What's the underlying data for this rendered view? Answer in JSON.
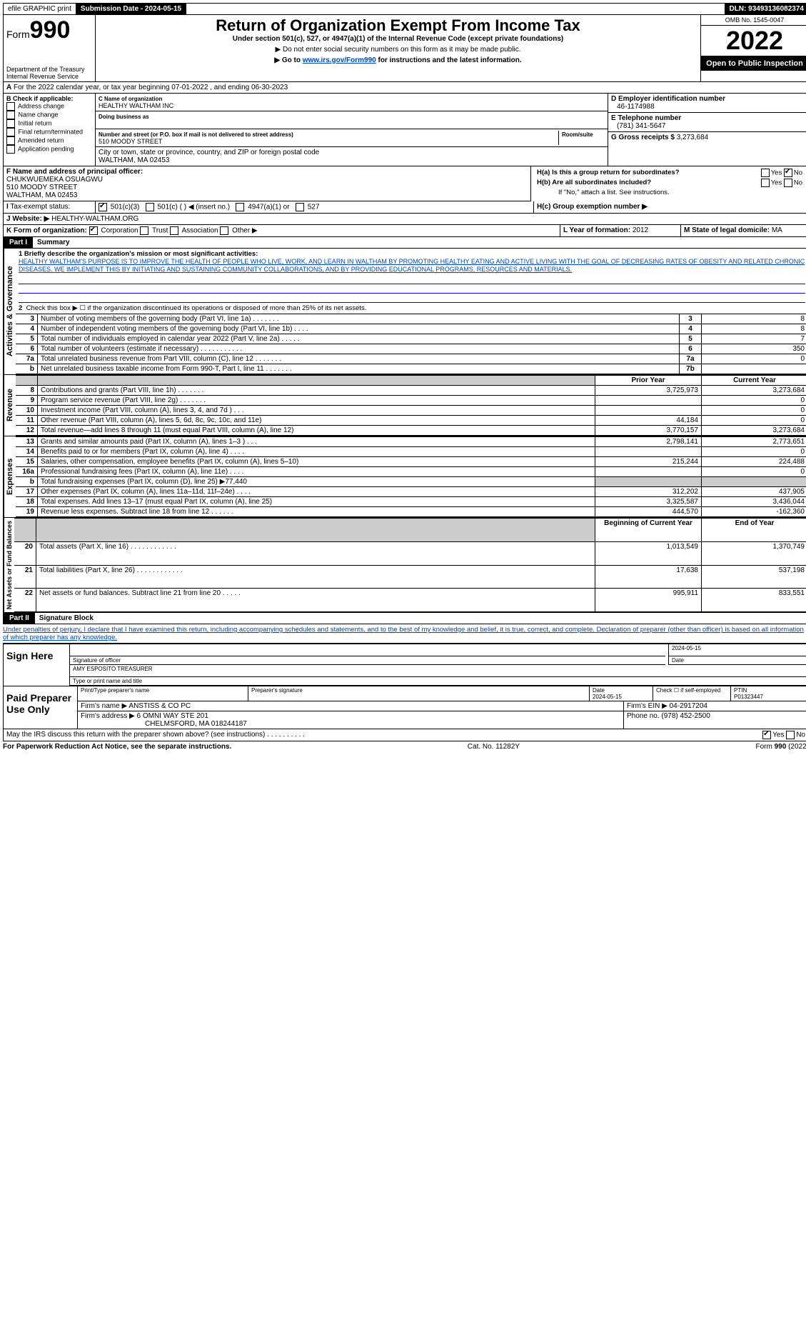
{
  "topbar": {
    "efile": "efile GRAPHIC print",
    "submission": "Submission Date - 2024-05-15",
    "dln": "DLN: 93493136082374"
  },
  "header": {
    "form_prefix": "Form",
    "form_num": "990",
    "title": "Return of Organization Exempt From Income Tax",
    "subtitle": "Under section 501(c), 527, or 4947(a)(1) of the Internal Revenue Code (except private foundations)",
    "note1": "▶ Do not enter social security numbers on this form as it may be made public.",
    "note2_pre": "▶ Go to ",
    "note2_link": "www.irs.gov/Form990",
    "note2_post": " for instructions and the latest information.",
    "dept": "Department of the Treasury",
    "irs": "Internal Revenue Service",
    "omb": "OMB No. 1545-0047",
    "year": "2022",
    "open": "Open to Public Inspection"
  },
  "line_a": "For the 2022 calendar year, or tax year beginning 07-01-2022    , and ending 06-30-2023",
  "box_b": {
    "label": "B Check if applicable:",
    "opts": [
      "Address change",
      "Name change",
      "Initial return",
      "Final return/terminated",
      "Amended return",
      "Application pending"
    ]
  },
  "box_c": {
    "name_lbl": "C Name of organization",
    "name": "HEALTHY WALTHAM INC",
    "dba_lbl": "Doing business as",
    "addr_lbl": "Number and street (or P.O. box if mail is not delivered to street address)",
    "room_lbl": "Room/suite",
    "addr": "510 MOODY STREET",
    "city_lbl": "City or town, state or province, country, and ZIP or foreign postal code",
    "city": "WALTHAM, MA  02453"
  },
  "box_d": {
    "lbl": "D Employer identification number",
    "val": "46-1174988"
  },
  "box_e": {
    "lbl": "E Telephone number",
    "val": "(781) 341-5647"
  },
  "box_g": {
    "lbl": "G Gross receipts $",
    "val": "3,273,684"
  },
  "box_f": {
    "lbl": "F  Name and address of principal officer:",
    "l1": "CHUKWUEMEKA OSUAGWU",
    "l2": "510 MOODY STREET",
    "l3": "WALTHAM, MA  02453"
  },
  "box_h": {
    "a": "H(a)  Is this a group return for subordinates?",
    "b": "H(b)  Are all subordinates included?",
    "note": "If \"No,\" attach a list. See instructions.",
    "c": "H(c)  Group exemption number ▶"
  },
  "yes": "Yes",
  "no": "No",
  "tax_status_lbl": "Tax-exempt status:",
  "tax_opts": {
    "a": "501(c)(3)",
    "b": "501(c) (    ) ◀ (insert no.)",
    "c": "4947(a)(1) or",
    "d": "527"
  },
  "website_lbl": "Website: ▶",
  "website": "HEALTHY-WALTHAM.ORG",
  "line_k": "K Form of organization:",
  "k_opts": {
    "corp": "Corporation",
    "trust": "Trust",
    "assoc": "Association",
    "other": "Other ▶"
  },
  "line_l": {
    "lbl": "L Year of formation:",
    "val": "2012"
  },
  "line_m": {
    "lbl": "M State of legal domicile:",
    "val": "MA"
  },
  "part1": {
    "num": "Part I",
    "title": "Summary"
  },
  "vtabs": {
    "ag": "Activities & Governance",
    "rev": "Revenue",
    "exp": "Expenses",
    "na": "Net Assets or Fund Balances"
  },
  "p1": {
    "l1_lbl": "1  Briefly describe the organization's mission or most significant activities:",
    "mission": "HEALTHY WALTHAM'S PURPOSE IS TO IMPROVE THE HEALTH OF PEOPLE WHO LIVE, WORK, AND LEARN IN WALTHAM BY PROMOTING HEALTHY EATING AND ACTIVE LIVING WITH THE GOAL OF DECREASING RATES OF OBESITY AND RELATED CHRONIC DISEASES. WE IMPLEMENT THIS BY INITIATING AND SUSTAINING COMMUNITY COLLABORATIONS, AND BY PROVIDING EDUCATIONAL PROGRAMS, RESOURCES AND MATERIALS.",
    "l2": "Check this box ▶ ☐ if the organization discontinued its operations or disposed of more than 25% of its net assets.",
    "rows_ag": [
      {
        "n": "3",
        "d": "Number of voting members of the governing body (Part VI, line 1a)   .    .    .    .    .    .    .",
        "rn": "3",
        "v": "8"
      },
      {
        "n": "4",
        "d": "Number of independent voting members of the governing body (Part VI, line 1b)   .    .    .    .",
        "rn": "4",
        "v": "8"
      },
      {
        "n": "5",
        "d": "Total number of individuals employed in calendar year 2022 (Part V, line 2a)   .    .    .    .    .",
        "rn": "5",
        "v": "7"
      },
      {
        "n": "6",
        "d": "Total number of volunteers (estimate if necessary)   .    .    .    .    .    .    .    .    .    .    .",
        "rn": "6",
        "v": "350"
      },
      {
        "n": "7a",
        "d": "Total unrelated business revenue from Part VIII, column (C), line 12   .    .    .    .    .    .    .",
        "rn": "7a",
        "v": "0"
      },
      {
        "n": "b",
        "d": "Net unrelated business taxable income from Form 990-T, Part I, line 11   .    .    .    .    .    .    .",
        "rn": "7b",
        "v": ""
      }
    ],
    "hdr_prior": "Prior Year",
    "hdr_curr": "Current Year",
    "rows_rev": [
      {
        "n": "8",
        "d": "Contributions and grants (Part VIII, line 1h)   .    .    .    .    .    .    .",
        "p": "3,725,973",
        "c": "3,273,684"
      },
      {
        "n": "9",
        "d": "Program service revenue (Part VIII, line 2g)   .    .    .    .    .    .    .",
        "p": "",
        "c": "0"
      },
      {
        "n": "10",
        "d": "Investment income (Part VIII, column (A), lines 3, 4, and 7d )   .    .    .",
        "p": "",
        "c": "0"
      },
      {
        "n": "11",
        "d": "Other revenue (Part VIII, column (A), lines 5, 6d, 8c, 9c, 10c, and 11e)",
        "p": "44,184",
        "c": "0"
      },
      {
        "n": "12",
        "d": "Total revenue—add lines 8 through 11 (must equal Part VIII, column (A), line 12)",
        "p": "3,770,157",
        "c": "3,273,684"
      }
    ],
    "rows_exp": [
      {
        "n": "13",
        "d": "Grants and similar amounts paid (Part IX, column (A), lines 1–3 )   .    .    .",
        "p": "2,798,141",
        "c": "2,773,651"
      },
      {
        "n": "14",
        "d": "Benefits paid to or for members (Part IX, column (A), line 4)   .    .    .    .",
        "p": "",
        "c": "0"
      },
      {
        "n": "15",
        "d": "Salaries, other compensation, employee benefits (Part IX, column (A), lines 5–10)",
        "p": "215,244",
        "c": "224,488"
      },
      {
        "n": "16a",
        "d": "Professional fundraising fees (Part IX, column (A), line 11e)   .    .    .    .",
        "p": "",
        "c": "0"
      },
      {
        "n": "b",
        "d": "Total fundraising expenses (Part IX, column (D), line 25) ▶77,440",
        "p": "grey",
        "c": "grey"
      },
      {
        "n": "17",
        "d": "Other expenses (Part IX, column (A), lines 11a–11d, 11f–24e)   .    .    .    .",
        "p": "312,202",
        "c": "437,905"
      },
      {
        "n": "18",
        "d": "Total expenses. Add lines 13–17 (must equal Part IX, column (A), line 25)",
        "p": "3,325,587",
        "c": "3,436,044"
      },
      {
        "n": "19",
        "d": "Revenue less expenses. Subtract line 18 from line 12   .    .    .    .    .    .",
        "p": "444,570",
        "c": "-162,360"
      }
    ],
    "hdr_beg": "Beginning of Current Year",
    "hdr_end": "End of Year",
    "rows_na": [
      {
        "n": "20",
        "d": "Total assets (Part X, line 16)   .    .    .    .    .    .    .    .    .    .    .    .",
        "p": "1,013,549",
        "c": "1,370,749"
      },
      {
        "n": "21",
        "d": "Total liabilities (Part X, line 26)   .    .    .    .    .    .    .    .    .    .    .    .",
        "p": "17,638",
        "c": "537,198"
      },
      {
        "n": "22",
        "d": "Net assets or fund balances. Subtract line 21 from line 20   .    .    .    .    .",
        "p": "995,911",
        "c": "833,551"
      }
    ]
  },
  "part2": {
    "num": "Part II",
    "title": "Signature Block"
  },
  "perjury": "Under penalties of perjury, I declare that I have examined this return, including accompanying schedules and statements, and to the best of my knowledge and belief, it is true, correct, and complete. Declaration of preparer (other than officer) is based on all information of which preparer has any knowledge.",
  "sign": {
    "here": "Sign Here",
    "sig_officer": "Signature of officer",
    "date": "Date",
    "date_v": "2024-05-15",
    "name": "AMY ESPOSITO  TREASURER",
    "name_lbl": "Type or print name and title"
  },
  "paid": {
    "lbl": "Paid Preparer Use Only",
    "h_name": "Print/Type preparer's name",
    "h_sig": "Preparer's signature",
    "h_date": "Date",
    "h_date_v": "2024-05-15",
    "h_self": "Check ☐ if self-employed",
    "h_ptin": "PTIN",
    "ptin": "P01323447",
    "firm_lbl": "Firm's name    ▶",
    "firm": "ANSTISS & CO PC",
    "ein_lbl": "Firm's EIN ▶",
    "ein": "04-2917204",
    "addr_lbl": "Firm's address ▶",
    "addr1": "6 OMNI WAY STE 201",
    "addr2": "CHELMSFORD, MA  018244187",
    "phone_lbl": "Phone no.",
    "phone": "(978) 452-2500"
  },
  "discuss": "May the IRS discuss this return with the preparer shown above? (see instructions)   .    .    .    .    .    .    .    .    .    .",
  "footer": {
    "l": "For Paperwork Reduction Act Notice, see the separate instructions.",
    "c": "Cat. No. 11282Y",
    "r": "Form 990 (2022)"
  }
}
